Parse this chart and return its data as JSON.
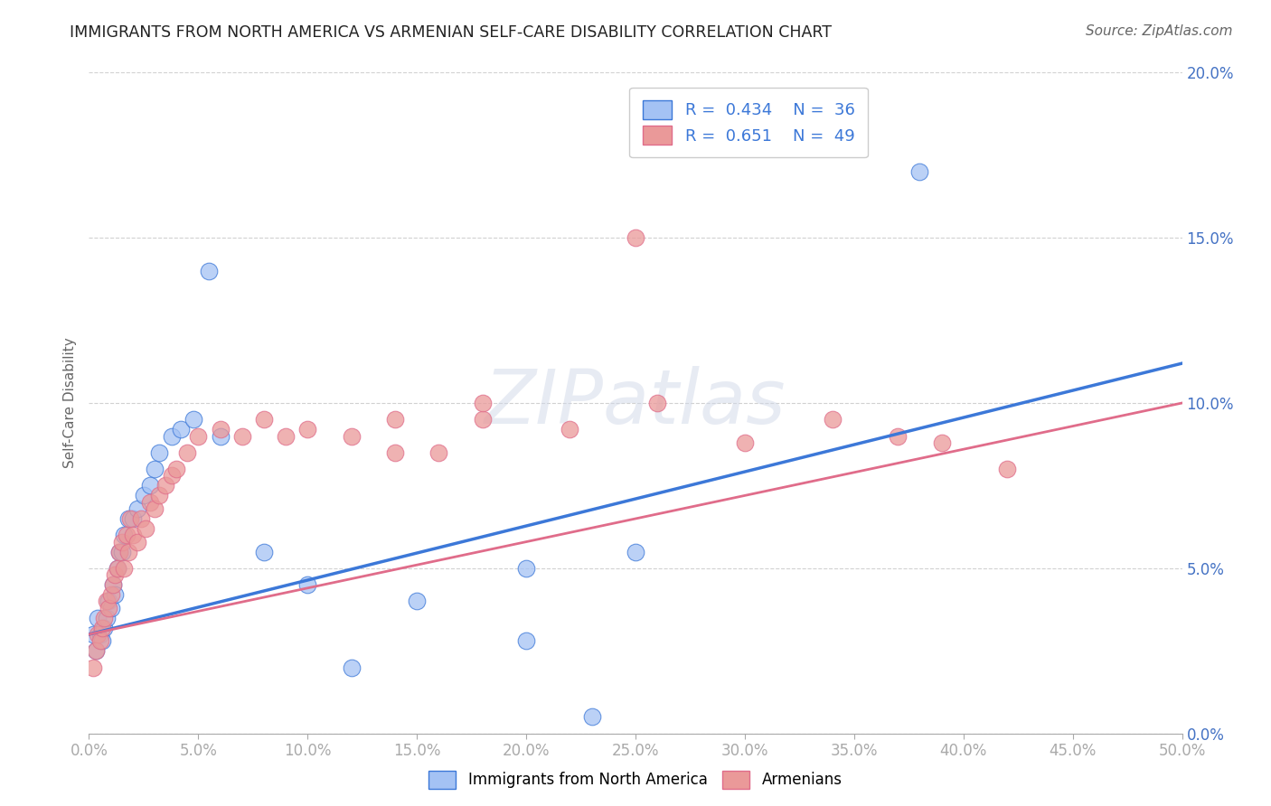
{
  "title": "IMMIGRANTS FROM NORTH AMERICA VS ARMENIAN SELF-CARE DISABILITY CORRELATION CHART",
  "source": "Source: ZipAtlas.com",
  "ylabel": "Self-Care Disability",
  "xlim": [
    0.0,
    0.5
  ],
  "ylim": [
    0.0,
    0.2
  ],
  "xticks": [
    0.0,
    0.05,
    0.1,
    0.15,
    0.2,
    0.25,
    0.3,
    0.35,
    0.4,
    0.45,
    0.5
  ],
  "yticks": [
    0.0,
    0.05,
    0.1,
    0.15,
    0.2
  ],
  "blue_R": 0.434,
  "blue_N": 36,
  "pink_R": 0.651,
  "pink_N": 49,
  "blue_color": "#a4c2f4",
  "pink_color": "#ea9999",
  "blue_line_color": "#3c78d8",
  "pink_line_color": "#e06c8a",
  "legend_label_blue": "Immigrants from North America",
  "legend_label_pink": "Armenians",
  "blue_trend_start": 0.03,
  "blue_trend_end": 0.112,
  "pink_trend_start": 0.03,
  "pink_trend_end": 0.1,
  "blue_scatter_x": [
    0.002,
    0.003,
    0.004,
    0.005,
    0.006,
    0.007,
    0.008,
    0.009,
    0.01,
    0.011,
    0.012,
    0.013,
    0.014,
    0.015,
    0.016,
    0.018,
    0.02,
    0.022,
    0.025,
    0.028,
    0.03,
    0.032,
    0.038,
    0.042,
    0.048,
    0.055,
    0.06,
    0.08,
    0.1,
    0.15,
    0.2,
    0.23,
    0.25,
    0.38,
    0.2,
    0.12
  ],
  "blue_scatter_y": [
    0.03,
    0.025,
    0.035,
    0.03,
    0.028,
    0.032,
    0.035,
    0.04,
    0.038,
    0.045,
    0.042,
    0.05,
    0.055,
    0.055,
    0.06,
    0.065,
    0.065,
    0.068,
    0.072,
    0.075,
    0.08,
    0.085,
    0.09,
    0.092,
    0.095,
    0.14,
    0.09,
    0.055,
    0.045,
    0.04,
    0.05,
    0.005,
    0.055,
    0.17,
    0.028,
    0.02
  ],
  "pink_scatter_x": [
    0.002,
    0.003,
    0.004,
    0.005,
    0.006,
    0.007,
    0.008,
    0.009,
    0.01,
    0.011,
    0.012,
    0.013,
    0.014,
    0.015,
    0.016,
    0.017,
    0.018,
    0.019,
    0.02,
    0.022,
    0.024,
    0.026,
    0.028,
    0.03,
    0.032,
    0.035,
    0.038,
    0.04,
    0.045,
    0.05,
    0.06,
    0.07,
    0.08,
    0.1,
    0.12,
    0.14,
    0.16,
    0.18,
    0.22,
    0.26,
    0.3,
    0.34,
    0.37,
    0.39,
    0.42,
    0.25,
    0.18,
    0.14,
    0.09
  ],
  "pink_scatter_y": [
    0.02,
    0.025,
    0.03,
    0.028,
    0.032,
    0.035,
    0.04,
    0.038,
    0.042,
    0.045,
    0.048,
    0.05,
    0.055,
    0.058,
    0.05,
    0.06,
    0.055,
    0.065,
    0.06,
    0.058,
    0.065,
    0.062,
    0.07,
    0.068,
    0.072,
    0.075,
    0.078,
    0.08,
    0.085,
    0.09,
    0.092,
    0.09,
    0.095,
    0.092,
    0.09,
    0.095,
    0.085,
    0.095,
    0.092,
    0.1,
    0.088,
    0.095,
    0.09,
    0.088,
    0.08,
    0.15,
    0.1,
    0.085,
    0.09
  ],
  "background_color": "#ffffff",
  "grid_color": "#cccccc",
  "title_color": "#222222",
  "axis_label_color": "#666666",
  "tick_label_color": "#4472c4",
  "source_color": "#666666"
}
